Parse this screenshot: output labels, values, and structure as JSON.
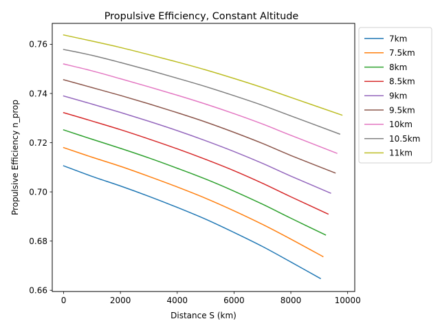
{
  "chart_data": {
    "type": "line",
    "title": "Propulsive Efficiency, Constant Altitude",
    "xlabel": "Distance S (km)",
    "ylabel": "Propulsive Efficiency n_prop",
    "xlim": [
      -400,
      10250
    ],
    "ylim": [
      0.6595,
      0.7685
    ],
    "xticks": [
      0,
      2000,
      4000,
      6000,
      8000,
      10000
    ],
    "xtick_labels": [
      "0",
      "2000",
      "4000",
      "6000",
      "8000",
      "10000"
    ],
    "yticks": [
      0.66,
      0.68,
      0.7,
      0.72,
      0.74,
      0.76
    ],
    "ytick_labels": [
      "0.66",
      "0.68",
      "0.70",
      "0.72",
      "0.74",
      "0.76"
    ],
    "grid": false,
    "legend_position": "outside-right-top",
    "x": [
      0,
      1000,
      2000,
      3000,
      4000,
      5000,
      6000,
      7000,
      8000,
      9000,
      10000
    ],
    "series": [
      {
        "name": "7km",
        "color": "#1f77b4",
        "x": [
          0,
          1000,
          2000,
          3000,
          4000,
          5000,
          6000,
          7000,
          8000,
          9040
        ],
        "values": [
          0.7106,
          0.7063,
          0.7024,
          0.6982,
          0.6937,
          0.6889,
          0.6835,
          0.6778,
          0.6715,
          0.6648
        ]
      },
      {
        "name": "7.5km",
        "color": "#ff7f0e",
        "x": [
          0,
          1000,
          2000,
          3000,
          4000,
          5000,
          6000,
          7000,
          8000,
          9130
        ],
        "values": [
          0.718,
          0.7141,
          0.7104,
          0.7063,
          0.702,
          0.6974,
          0.6923,
          0.6868,
          0.6808,
          0.6737
        ]
      },
      {
        "name": "8km",
        "color": "#2ca02c",
        "x": [
          0,
          1000,
          2000,
          3000,
          4000,
          5000,
          6000,
          7000,
          8000,
          9220
        ],
        "values": [
          0.7252,
          0.7214,
          0.7177,
          0.7138,
          0.7096,
          0.7052,
          0.7003,
          0.695,
          0.6893,
          0.6825
        ]
      },
      {
        "name": "8.5km",
        "color": "#d62728",
        "x": [
          0,
          1000,
          2000,
          3000,
          4000,
          5000,
          6000,
          7000,
          8000,
          9310
        ],
        "values": [
          0.7322,
          0.7288,
          0.7253,
          0.7215,
          0.7175,
          0.7132,
          0.7086,
          0.7035,
          0.698,
          0.691
        ]
      },
      {
        "name": "9km",
        "color": "#9467bd",
        "x": [
          0,
          1000,
          2000,
          3000,
          4000,
          5000,
          6000,
          7000,
          8000,
          9400
        ],
        "values": [
          0.739,
          0.7357,
          0.7323,
          0.7287,
          0.7249,
          0.7208,
          0.7164,
          0.7116,
          0.7064,
          0.6995
        ]
      },
      {
        "name": "9.5km",
        "color": "#8c564b",
        "x": [
          0,
          1000,
          2000,
          3000,
          4000,
          5000,
          6000,
          7000,
          8000,
          9560
        ],
        "values": [
          0.7456,
          0.7424,
          0.7392,
          0.7358,
          0.7322,
          0.7284,
          0.7242,
          0.7197,
          0.7148,
          0.7077
        ]
      },
      {
        "name": "10km",
        "color": "#e377c2",
        "x": [
          0,
          1000,
          2000,
          3000,
          4000,
          5000,
          6000,
          7000,
          8000,
          9620
        ],
        "values": [
          0.752,
          0.7492,
          0.746,
          0.7427,
          0.7393,
          0.7357,
          0.7318,
          0.7276,
          0.723,
          0.7157
        ]
      },
      {
        "name": "10.5km",
        "color": "#7f7f7f",
        "x": [
          0,
          1000,
          2000,
          3000,
          4000,
          5000,
          6000,
          7000,
          8000,
          9720
        ],
        "values": [
          0.7579,
          0.7555,
          0.7526,
          0.7495,
          0.7462,
          0.7428,
          0.7391,
          0.7352,
          0.7309,
          0.7235
        ]
      },
      {
        "name": "11km",
        "color": "#bcbd22",
        "x": [
          0,
          1000,
          2000,
          3000,
          4000,
          5000,
          6000,
          7000,
          8000,
          9800
        ],
        "values": [
          0.7638,
          0.7613,
          0.7587,
          0.7558,
          0.7528,
          0.7496,
          0.7461,
          0.7424,
          0.7384,
          0.7312
        ]
      }
    ]
  }
}
